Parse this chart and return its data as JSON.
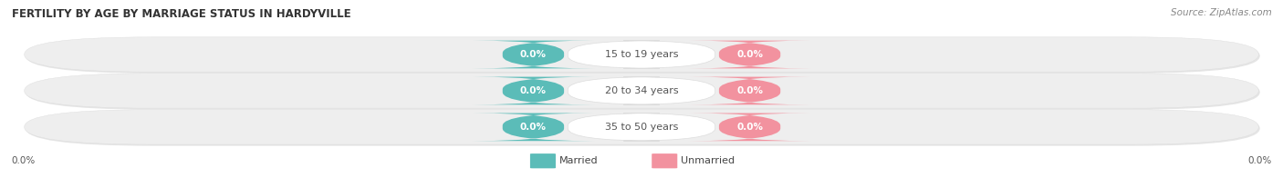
{
  "title": "FERTILITY BY AGE BY MARRIAGE STATUS IN HARDYVILLE",
  "source": "Source: ZipAtlas.com",
  "categories": [
    "15 to 19 years",
    "20 to 34 years",
    "35 to 50 years"
  ],
  "married_values": [
    0.0,
    0.0,
    0.0
  ],
  "unmarried_values": [
    0.0,
    0.0,
    0.0
  ],
  "married_color": "#5bbcb8",
  "unmarried_color": "#f2929f",
  "row_bg_color": "#ebebeb",
  "row_bg_colors": [
    "#e8e8e8",
    "#e0e0e0",
    "#e8e8e8"
  ],
  "title_fontsize": 8.5,
  "source_fontsize": 7.5,
  "label_fontsize": 8,
  "value_fontsize": 7.5,
  "axis_label_fontsize": 7.5,
  "legend_fontsize": 8,
  "left_axis_label": "0.0%",
  "right_axis_label": "0.0%",
  "figsize": [
    14.06,
    1.96
  ],
  "dpi": 100
}
